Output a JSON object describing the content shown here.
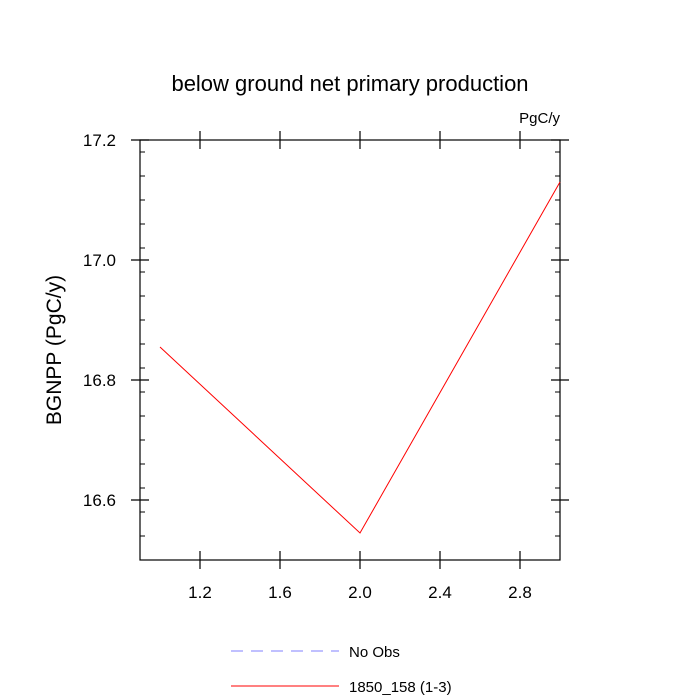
{
  "chart_data": {
    "type": "line",
    "title": "below ground net primary production",
    "units_label": "PgC/y",
    "xlabel": "",
    "ylabel": "BGNPP  (PgC/y)",
    "xlim": [
      0.9,
      3.0
    ],
    "ylim": [
      16.5,
      17.2
    ],
    "x_ticks": [
      1.2,
      1.6,
      2.0,
      2.4,
      2.8
    ],
    "x_tick_labels": [
      "1.2",
      "1.6",
      "2.0",
      "2.4",
      "2.8"
    ],
    "y_ticks": [
      16.6,
      16.8,
      17.0,
      17.2
    ],
    "y_tick_labels": [
      "16.6",
      "16.8",
      "17.0",
      "17.2"
    ],
    "grid": false,
    "legend_position": "bottom",
    "series": [
      {
        "name": "1850_158 (1-3)",
        "x": [
          1.0,
          2.0,
          3.0
        ],
        "y": [
          16.855,
          16.545,
          17.13
        ],
        "color": "#ff0000",
        "dash": "solid"
      }
    ],
    "legend": [
      {
        "label": "No Obs",
        "color": "#8080ff",
        "dash": "dashed"
      },
      {
        "label": "1850_158 (1-3)",
        "color": "#ff0000",
        "dash": "solid"
      }
    ]
  }
}
